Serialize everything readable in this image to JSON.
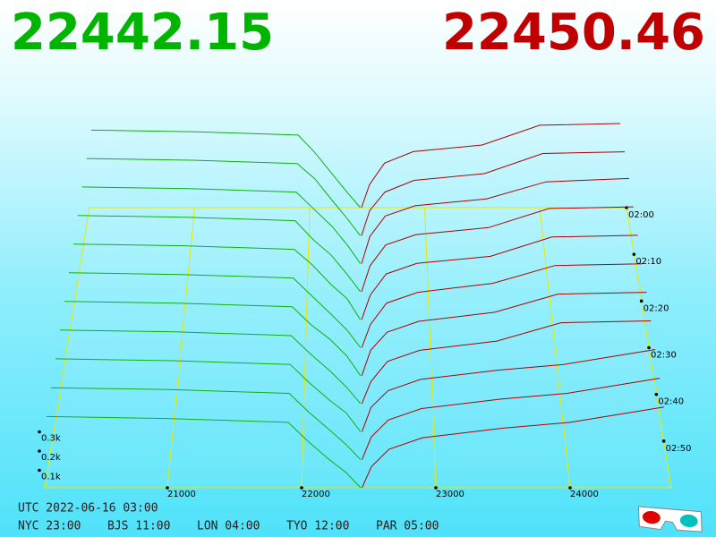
{
  "header": {
    "bid_price": 22442.15,
    "ask_price": 22450.46
  },
  "chart_data": {
    "type": "depth3d",
    "xticks": [
      21000,
      22000,
      23000,
      24000
    ],
    "tticks": [
      {
        "value": 0,
        "label": "02:00"
      },
      {
        "value": 10,
        "label": "02:10"
      },
      {
        "value": 20,
        "label": "02:20"
      },
      {
        "value": 30,
        "label": "02:30"
      },
      {
        "value": 40,
        "label": "02:40"
      },
      {
        "value": 50,
        "label": "02:50"
      }
    ],
    "zticks": [
      {
        "value": 0.1,
        "label": "0.1k"
      },
      {
        "value": 0.2,
        "label": "0.2k"
      },
      {
        "value": 0.3,
        "label": "0.3k"
      }
    ],
    "bid_color": "#10b010",
    "ask_color": "#b00000",
    "floor_color": "#e8e800",
    "bid_prices": [
      20100,
      21000,
      21900,
      22050,
      22200,
      22330,
      22440
    ],
    "ask_prices": [
      22450,
      22520,
      22650,
      22900,
      23500,
      24000,
      24700
    ],
    "snapshots": [
      {
        "minute": 0,
        "bids": [
          0.47,
          0.46,
          0.44,
          0.33,
          0.2,
          0.09,
          0
        ],
        "asks": [
          0,
          0.14,
          0.27,
          0.34,
          0.38,
          0.5,
          0.51
        ]
      },
      {
        "minute": 6,
        "bids": [
          0.46,
          0.45,
          0.43,
          0.34,
          0.21,
          0.1,
          0
        ],
        "asks": [
          0,
          0.15,
          0.26,
          0.33,
          0.37,
          0.49,
          0.5
        ]
      },
      {
        "minute": 12,
        "bids": [
          0.45,
          0.44,
          0.42,
          0.32,
          0.22,
          0.11,
          0
        ],
        "asks": [
          0,
          0.16,
          0.28,
          0.34,
          0.38,
          0.48,
          0.5
        ]
      },
      {
        "minute": 18,
        "bids": [
          0.44,
          0.43,
          0.41,
          0.3,
          0.21,
          0.1,
          0
        ],
        "asks": [
          0,
          0.15,
          0.27,
          0.33,
          0.37,
          0.48,
          0.49
        ]
      },
      {
        "minute": 24,
        "bids": [
          0.43,
          0.42,
          0.4,
          0.31,
          0.2,
          0.12,
          0
        ],
        "asks": [
          0,
          0.14,
          0.26,
          0.32,
          0.36,
          0.47,
          0.48
        ]
      },
      {
        "minute": 30,
        "bids": [
          0.42,
          0.41,
          0.39,
          0.29,
          0.19,
          0.1,
          0
        ],
        "asks": [
          0,
          0.13,
          0.25,
          0.31,
          0.36,
          0.46,
          0.47
        ]
      },
      {
        "minute": 36,
        "bids": [
          0.41,
          0.4,
          0.38,
          0.28,
          0.2,
          0.11,
          0
        ],
        "asks": [
          0,
          0.14,
          0.24,
          0.3,
          0.35,
          0.45,
          0.46
        ]
      },
      {
        "minute": 42,
        "bids": [
          0.4,
          0.39,
          0.37,
          0.27,
          0.18,
          0.09,
          0
        ],
        "asks": [
          0,
          0.12,
          0.23,
          0.29,
          0.34,
          0.44,
          0.45
        ]
      },
      {
        "minute": 48,
        "bids": [
          0.39,
          0.38,
          0.36,
          0.26,
          0.17,
          0.1,
          0
        ],
        "asks": [
          0,
          0.13,
          0.22,
          0.28,
          0.33,
          0.36,
          0.44
        ]
      },
      {
        "minute": 54,
        "bids": [
          0.38,
          0.37,
          0.35,
          0.25,
          0.16,
          0.08,
          0
        ],
        "asks": [
          0,
          0.12,
          0.21,
          0.27,
          0.32,
          0.35,
          0.43
        ]
      },
      {
        "minute": 60,
        "bids": [
          0.37,
          0.36,
          0.34,
          0.24,
          0.15,
          0.08,
          0
        ],
        "asks": [
          0,
          0.11,
          0.2,
          0.26,
          0.31,
          0.34,
          0.42
        ]
      }
    ]
  },
  "footer": {
    "utc": "UTC 2022-06-16 03:00",
    "cities": [
      "NYC 23:00",
      "BJS 11:00",
      "LON 04:00",
      "TYO 12:00",
      "PAR 05:00"
    ]
  }
}
